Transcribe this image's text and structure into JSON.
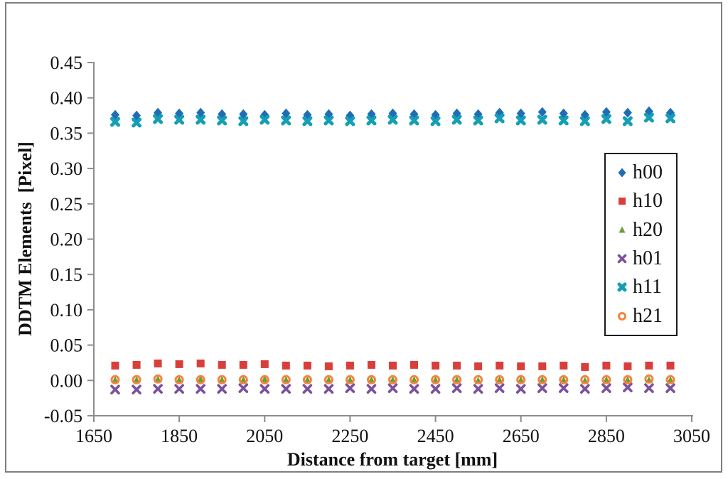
{
  "figure": {
    "background": "#ffffff",
    "frame_border_color": "#7f7f7f",
    "axis_color": "#8c8c8c",
    "text_color": "#111111",
    "legend_border_color": "#1a1a1a"
  },
  "chart_data": {
    "type": "scatter",
    "title": "",
    "xlabel": "Distance from target [mm]",
    "ylabel": "DDTM Elements  [Pixel]",
    "xlim": [
      1650,
      3050
    ],
    "ylim": [
      -0.05,
      0.45
    ],
    "x_ticks": [
      1650,
      1850,
      2050,
      2250,
      2450,
      2650,
      2850,
      3050
    ],
    "y_ticks": [
      -0.05,
      0.0,
      0.05,
      0.1,
      0.15,
      0.2,
      0.25,
      0.3,
      0.35,
      0.4,
      0.45
    ],
    "grid": false,
    "legend_position": "right-inside",
    "x": [
      1700,
      1750,
      1800,
      1850,
      1900,
      1950,
      2000,
      2050,
      2100,
      2150,
      2200,
      2250,
      2300,
      2350,
      2400,
      2450,
      2500,
      2550,
      2600,
      2650,
      2700,
      2750,
      2800,
      2850,
      2900,
      2950,
      3000
    ],
    "series": [
      {
        "name": "h00",
        "marker": "diamond",
        "color": "#1f6db5",
        "values": [
          0.376,
          0.375,
          0.379,
          0.378,
          0.379,
          0.377,
          0.377,
          0.376,
          0.378,
          0.376,
          0.377,
          0.375,
          0.377,
          0.378,
          0.377,
          0.376,
          0.378,
          0.377,
          0.379,
          0.378,
          0.38,
          0.378,
          0.376,
          0.38,
          0.379,
          0.381,
          0.379
        ]
      },
      {
        "name": "h10",
        "marker": "square",
        "color": "#d83f3b",
        "values": [
          0.021,
          0.022,
          0.024,
          0.023,
          0.024,
          0.022,
          0.022,
          0.023,
          0.021,
          0.021,
          0.02,
          0.021,
          0.022,
          0.021,
          0.022,
          0.021,
          0.021,
          0.02,
          0.021,
          0.02,
          0.02,
          0.021,
          0.019,
          0.021,
          0.02,
          0.021,
          0.021
        ]
      },
      {
        "name": "h20",
        "marker": "triangle",
        "color": "#67a03c",
        "values": [
          0.0,
          0.0,
          0.001,
          0.0,
          0.001,
          0.0,
          0.0,
          0.001,
          0.0,
          0.0,
          0.0,
          0.0,
          0.0,
          0.0,
          0.0,
          0.0,
          0.0,
          -0.001,
          0.0,
          0.0,
          0.0,
          0.0,
          -0.001,
          0.0,
          0.0,
          0.0,
          0.0
        ]
      },
      {
        "name": "h01",
        "marker": "x-thin",
        "color": "#7b519d",
        "values": [
          -0.013,
          -0.013,
          -0.012,
          -0.012,
          -0.012,
          -0.012,
          -0.011,
          -0.012,
          -0.012,
          -0.012,
          -0.012,
          -0.011,
          -0.012,
          -0.011,
          -0.012,
          -0.012,
          -0.011,
          -0.012,
          -0.011,
          -0.012,
          -0.011,
          -0.011,
          -0.012,
          -0.011,
          -0.01,
          -0.011,
          -0.011
        ]
      },
      {
        "name": "h11",
        "marker": "x-bold",
        "color": "#149fb5",
        "values": [
          0.366,
          0.365,
          0.37,
          0.369,
          0.369,
          0.368,
          0.367,
          0.369,
          0.368,
          0.367,
          0.368,
          0.367,
          0.368,
          0.369,
          0.368,
          0.367,
          0.369,
          0.368,
          0.371,
          0.368,
          0.369,
          0.368,
          0.367,
          0.37,
          0.367,
          0.372,
          0.371
        ]
      },
      {
        "name": "h21",
        "marker": "circle-open",
        "color": "#f5843a",
        "values": [
          0.001,
          0.001,
          0.002,
          0.001,
          0.001,
          0.001,
          0.001,
          0.001,
          0.001,
          0.001,
          0.001,
          0.001,
          0.001,
          0.001,
          0.001,
          0.001,
          0.001,
          0.001,
          0.001,
          0.001,
          0.001,
          0.001,
          0.001,
          0.001,
          0.001,
          0.002,
          0.001
        ]
      }
    ]
  }
}
